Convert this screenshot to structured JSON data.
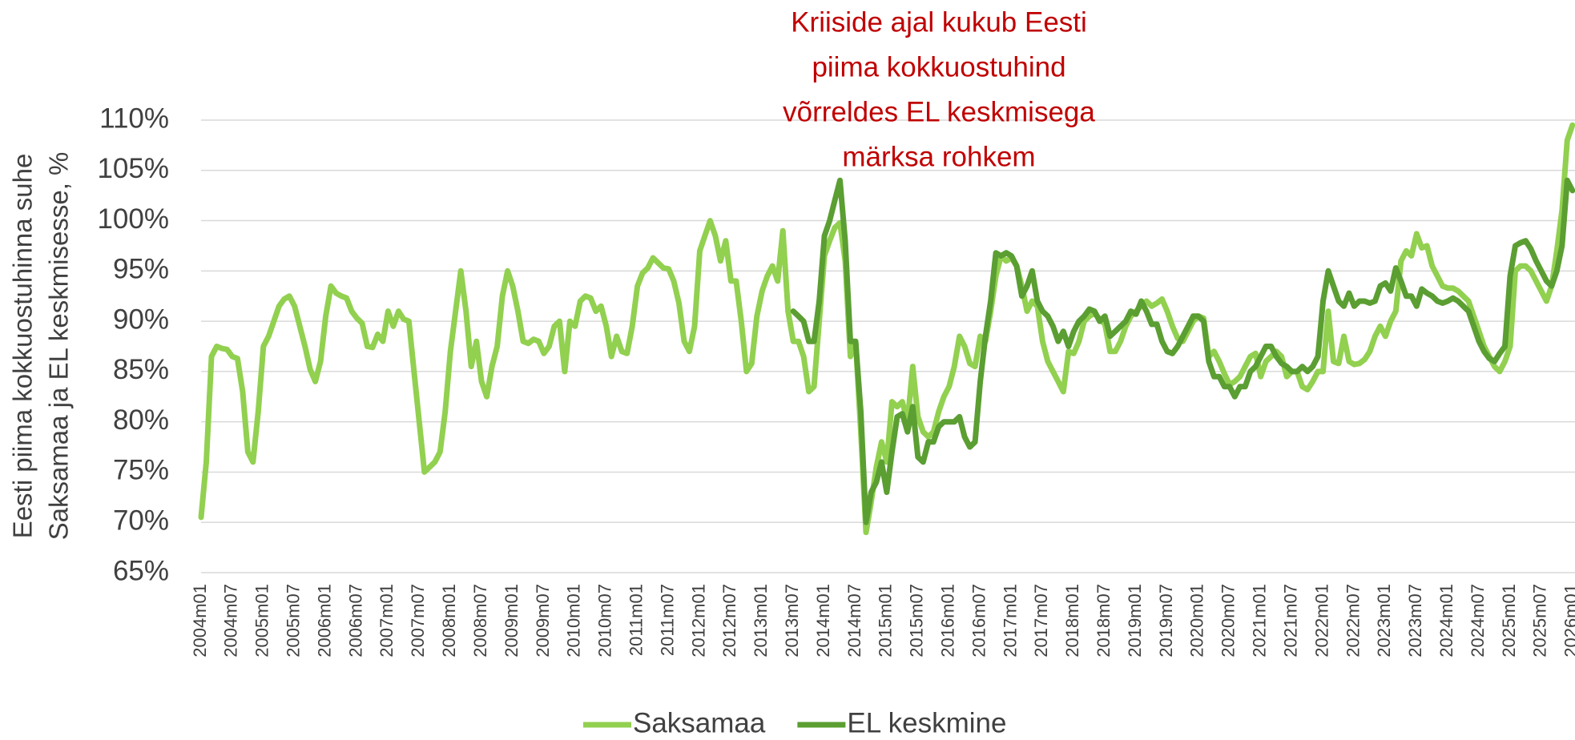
{
  "chart_data": {
    "type": "line",
    "annotation": [
      "Kriiside ajal kukub Eesti",
      "piima kokkuostuhind",
      "võrreldes EL keskmisega",
      "märksa rohkem"
    ],
    "annotation_color": "#c00000",
    "y_label": [
      "Eesti piima kokkuostuhinna suhe",
      "Saksamaa ja EL keskmisesse, %"
    ],
    "categories": [
      "2004m01",
      null,
      null,
      null,
      null,
      null,
      "2004m07",
      null,
      null,
      null,
      null,
      null,
      "2005m01",
      null,
      null,
      null,
      null,
      null,
      "2005m07",
      null,
      null,
      null,
      null,
      null,
      "2006m01",
      null,
      null,
      null,
      null,
      null,
      "2006m07",
      null,
      null,
      null,
      null,
      null,
      "2007m01",
      null,
      null,
      null,
      null,
      null,
      "2007m07",
      null,
      null,
      null,
      null,
      null,
      "2008m01",
      null,
      null,
      null,
      null,
      null,
      "2008m07",
      null,
      null,
      null,
      null,
      null,
      "2009m01",
      null,
      null,
      null,
      null,
      null,
      "2009m07",
      null,
      null,
      null,
      null,
      null,
      "2010m01",
      null,
      null,
      null,
      null,
      null,
      "2010m07",
      null,
      null,
      null,
      null,
      null,
      "2011m01",
      null,
      null,
      null,
      null,
      null,
      "2011m07",
      null,
      null,
      null,
      null,
      null,
      "2012m01",
      null,
      null,
      null,
      null,
      null,
      "2012m07",
      null,
      null,
      null,
      null,
      null,
      "2013m01",
      null,
      null,
      null,
      null,
      null,
      "2013m07",
      null,
      null,
      null,
      null,
      null,
      "2014m01",
      null,
      null,
      null,
      null,
      null,
      "2014m07",
      null,
      null,
      null,
      null,
      null,
      "2015m01",
      null,
      null,
      null,
      null,
      null,
      "2015m07",
      null,
      null,
      null,
      null,
      null,
      "2016m01",
      null,
      null,
      null,
      null,
      null,
      "2016m07",
      null,
      null,
      null,
      null,
      null,
      "2017m01",
      null,
      null,
      null,
      null,
      null,
      "2017m07",
      null,
      null,
      null,
      null,
      null,
      "2018m01",
      null,
      null,
      null,
      null,
      null,
      "2018m07",
      null,
      null,
      null,
      null,
      null,
      "2019m01",
      null,
      null,
      null,
      null,
      null,
      "2019m07",
      null,
      null,
      null,
      null,
      null,
      "2020m01",
      null,
      null,
      null,
      null,
      null,
      "2020m07",
      null,
      null,
      null,
      null,
      null,
      "2021m01",
      null,
      null,
      null,
      null,
      null,
      "2021m07",
      null,
      null,
      null,
      null,
      null,
      "2022m01",
      null,
      null,
      null,
      null,
      null,
      "2022m07",
      null,
      null,
      null,
      null,
      null,
      "2023m01",
      null,
      null,
      null,
      null,
      null,
      "2023m07",
      null,
      null,
      null,
      null,
      null,
      "2024m01",
      null,
      null,
      null,
      null,
      null,
      "2024m07",
      null,
      null,
      null,
      null,
      null,
      "2025m01",
      null,
      null,
      null,
      null,
      null,
      "2025m07",
      null,
      null,
      null,
      null,
      null,
      "2026m01"
    ],
    "series": [
      {
        "name": "Saksamaa",
        "color": "#92d050",
        "values": [
          70.5,
          76,
          86.5,
          87.5,
          87.3,
          87.2,
          86.5,
          86.3,
          83,
          77,
          76,
          81,
          87.5,
          88.5,
          90,
          91.5,
          92.2,
          92.5,
          91.5,
          89.5,
          87.5,
          85.2,
          84,
          86,
          90.5,
          93.5,
          92.8,
          92.5,
          92.3,
          91,
          90.3,
          89.8,
          87.5,
          87.4,
          88.7,
          88,
          91,
          89.5,
          91,
          90.2,
          90,
          85,
          80,
          75,
          75.5,
          76,
          77,
          81,
          87,
          91,
          95,
          91,
          85.5,
          88,
          84,
          82.5,
          85.5,
          87.5,
          92.5,
          95,
          93.5,
          91,
          88,
          87.8,
          88.2,
          88,
          86.8,
          87.5,
          89.5,
          90,
          85,
          90,
          89.5,
          92,
          92.5,
          92.3,
          91,
          91.5,
          89.5,
          86.5,
          88.5,
          87,
          86.8,
          89.5,
          93.5,
          94.8,
          95.3,
          96.3,
          95.8,
          95.3,
          95.2,
          94,
          91.8,
          88,
          87,
          89.5,
          97,
          98.5,
          100,
          98.5,
          96,
          98,
          94,
          94,
          90,
          85,
          85.8,
          90.5,
          93,
          94.5,
          95.5,
          94,
          99,
          91,
          88,
          88,
          86.5,
          83,
          83.5,
          90,
          96.5,
          98,
          99.3,
          99.8,
          96,
          86.5,
          88,
          79,
          69,
          72,
          75.5,
          78,
          76,
          82,
          81.5,
          82,
          80,
          85.5,
          80.5,
          79,
          78.5,
          79,
          81,
          82.5,
          83.5,
          85.5,
          88.5,
          87.5,
          85.8,
          85.5,
          88.5,
          88,
          91,
          94.5,
          96.5,
          96,
          96.3,
          95.5,
          93.5,
          91,
          92,
          91.5,
          88,
          86,
          85,
          84,
          83,
          87,
          86.8,
          88,
          90,
          90.5,
          90.8,
          90.2,
          89.7,
          87,
          87,
          88,
          89.5,
          90.5,
          91,
          91.5,
          92,
          91.5,
          91.8,
          92.2,
          91,
          89.5,
          88.3,
          88,
          89,
          90,
          90.5,
          90.3,
          86.5,
          87,
          86,
          84.8,
          83.7,
          84,
          84.5,
          85.5,
          86.5,
          86.8,
          84.5,
          86,
          86.5,
          87,
          86.5,
          84.5,
          85,
          85,
          83.5,
          83.2,
          84,
          85,
          85,
          91,
          86,
          85.8,
          88.5,
          86,
          85.7,
          85.8,
          86.2,
          87,
          88.5,
          89.5,
          88.5,
          90,
          91,
          96,
          97,
          96.5,
          98.7,
          97.3,
          97.5,
          95.5,
          94.5,
          93.5,
          93.3,
          93.3,
          93,
          92.5,
          92,
          90.5,
          89,
          87.5,
          86.5,
          85.5,
          85,
          86,
          87.5,
          95,
          95.5,
          95.5,
          95,
          94,
          93,
          92,
          93.5,
          97,
          101,
          108,
          109.5
        ]
      },
      {
        "name": "EL keskmine",
        "color": "#5b9e32",
        "values": [
          null,
          null,
          null,
          null,
          null,
          null,
          null,
          null,
          null,
          null,
          null,
          null,
          null,
          null,
          null,
          null,
          null,
          null,
          null,
          null,
          null,
          null,
          null,
          null,
          null,
          null,
          null,
          null,
          null,
          null,
          null,
          null,
          null,
          null,
          null,
          null,
          null,
          null,
          null,
          null,
          null,
          null,
          null,
          null,
          null,
          null,
          null,
          null,
          null,
          null,
          null,
          null,
          null,
          null,
          null,
          null,
          null,
          null,
          null,
          null,
          null,
          null,
          null,
          null,
          null,
          null,
          null,
          null,
          null,
          null,
          null,
          null,
          null,
          null,
          null,
          null,
          null,
          null,
          null,
          null,
          null,
          null,
          null,
          null,
          null,
          null,
          null,
          null,
          null,
          null,
          null,
          null,
          null,
          null,
          null,
          null,
          null,
          null,
          null,
          null,
          null,
          null,
          null,
          null,
          null,
          null,
          null,
          null,
          null,
          null,
          null,
          null,
          null,
          null,
          91,
          90.5,
          90,
          88,
          88,
          92,
          98.5,
          100,
          102,
          104,
          98,
          88,
          88,
          81,
          70,
          73,
          74,
          76,
          73,
          77,
          80.5,
          80.8,
          79,
          81.5,
          76.5,
          76,
          78,
          78,
          79.5,
          80,
          80,
          80,
          80.5,
          78.5,
          77.5,
          78,
          84,
          88.5,
          92,
          96.8,
          96.5,
          96.8,
          96.5,
          95.5,
          92.5,
          93.5,
          95,
          92,
          91,
          90.5,
          89.5,
          88,
          89,
          87.5,
          89,
          90,
          90.5,
          91.2,
          91,
          90,
          90.5,
          88.5,
          89,
          89.5,
          90,
          91,
          90.7,
          92,
          91,
          89.7,
          89.7,
          88,
          87,
          86.8,
          87.5,
          88.5,
          89.5,
          90.5,
          90.5,
          90,
          86,
          84.5,
          84.5,
          83.5,
          83.5,
          82.5,
          83.5,
          83.5,
          85,
          85.5,
          86.5,
          87.5,
          87.5,
          86.5,
          85.8,
          85.5,
          85,
          85,
          85.5,
          85,
          85.5,
          86.5,
          92,
          95,
          93.5,
          92,
          91.5,
          92.8,
          91.5,
          92,
          92,
          91.8,
          92,
          93.5,
          93.8,
          93,
          95.3,
          94,
          92.5,
          92.5,
          91.5,
          93.2,
          92.8,
          92.5,
          92,
          91.8,
          92,
          92.3,
          92,
          91.5,
          91,
          89.5,
          88,
          87,
          86.3,
          86,
          86.8,
          87.5,
          94.5,
          97.5,
          97.8,
          98,
          97.2,
          96,
          95,
          94,
          93.5,
          95,
          97.5,
          104,
          103
        ]
      }
    ],
    "ylim": [
      65,
      110
    ],
    "yticks": [
      {
        "value": 65,
        "label": "65%"
      },
      {
        "value": 70,
        "label": "70%"
      },
      {
        "value": 75,
        "label": "75%"
      },
      {
        "value": 80,
        "label": "80%"
      },
      {
        "value": 85,
        "label": "85%"
      },
      {
        "value": 90,
        "label": "90%"
      },
      {
        "value": 95,
        "label": "95%"
      },
      {
        "value": 100,
        "label": "100%"
      },
      {
        "value": 105,
        "label": "105%"
      },
      {
        "value": 110,
        "label": "110%"
      }
    ],
    "grid": true,
    "legend": "bottom"
  }
}
